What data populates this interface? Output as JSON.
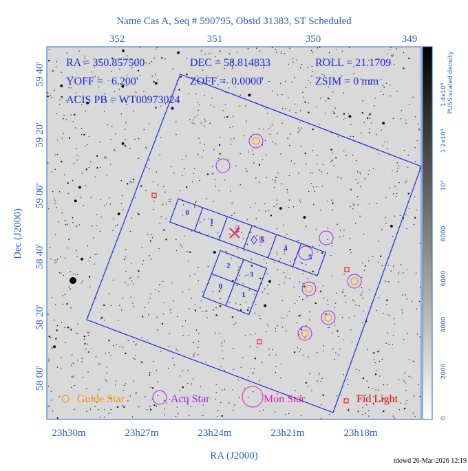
{
  "title": "Name Cas A, Seq # 590795, Obsid 31383, ST Scheduled",
  "info": [
    "RA = 350.857500",
    "DEC = 58.814833",
    "ROLL = 21.1709",
    "YOFF =   6.200'",
    "ZOFF =  0.0000'",
    "ZSIM = 0 mm",
    "ACIS PB = WT00973024"
  ],
  "top_ticks": [
    "352",
    "351",
    "350",
    "349"
  ],
  "left_ticks": [
    "59 40'",
    "59 20'",
    "59 00'",
    "58 40'",
    "58 20'",
    "58 00'"
  ],
  "bottom_ticks": [
    "23h30m",
    "23h27m",
    "23h24m",
    "23h21m",
    "23h18m"
  ],
  "x_label": "RA (J2000)",
  "y_label": "Dec (J2000)",
  "colorbar": {
    "title": "PUSS scaled density",
    "ticks": [
      "0",
      "2000",
      "4000",
      "6000",
      "8000",
      "10⁴",
      "1.2x10⁴",
      "1.4x10⁴"
    ]
  },
  "s_chips": [
    "0",
    "1",
    "2",
    "3",
    "4",
    "5"
  ],
  "i_chips": [
    "2",
    "3",
    "0",
    "1"
  ],
  "star_labels": [
    "2",
    "3"
  ],
  "legend": [
    "Guide Star",
    "Acq Star",
    "Mon Star",
    "Fid Light"
  ],
  "footer": "tdowd 26-Mar-2026 12:19"
}
